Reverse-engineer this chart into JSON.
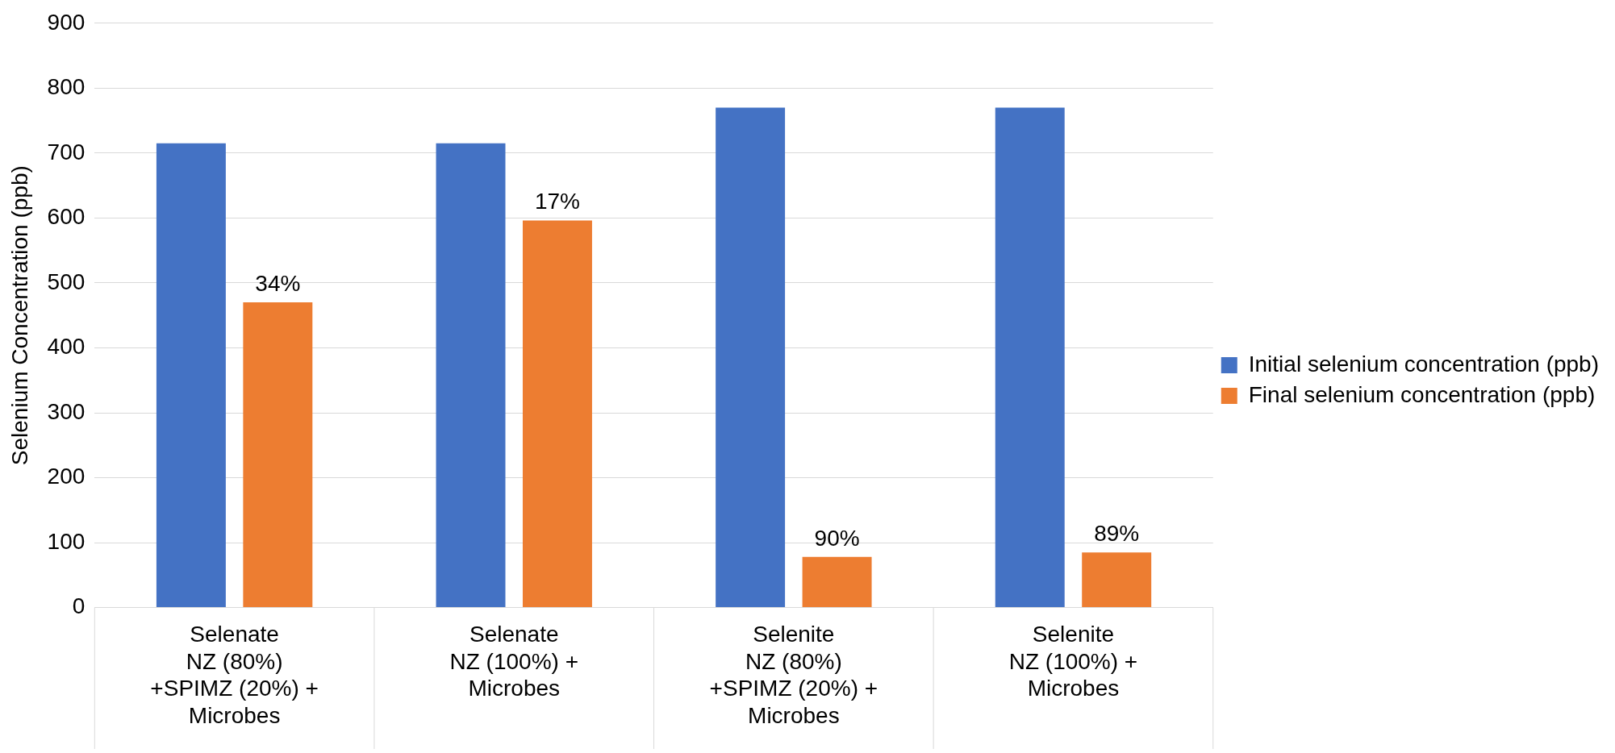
{
  "chart_data": {
    "type": "bar",
    "ylabel": "Selenium Concentration (ppb)",
    "categories": [
      "Selenate\nNZ (80%)\n+SPIMZ (20%) +\nMicrobes",
      "Selenate\nNZ (100%) +\nMicrobes",
      "Selenite\nNZ (80%)\n+SPIMZ (20%) +\nMicrobes",
      "Selenite\nNZ (100%) +\nMicrobes"
    ],
    "series": [
      {
        "name": "Initial selenium concentration (ppb)",
        "color": "#4472c4",
        "values": [
          715,
          715,
          770,
          770
        ]
      },
      {
        "name": "Final selenium concentration (ppb)",
        "color": "#ed7d31",
        "values": [
          470,
          596,
          78,
          85
        ]
      }
    ],
    "annotations": [
      "34%",
      "17%",
      "90%",
      "89%"
    ],
    "ylim": [
      0,
      900
    ],
    "yticks": [
      0,
      100,
      200,
      300,
      400,
      500,
      600,
      700,
      800,
      900
    ],
    "grid": "y",
    "legend": "right"
  }
}
